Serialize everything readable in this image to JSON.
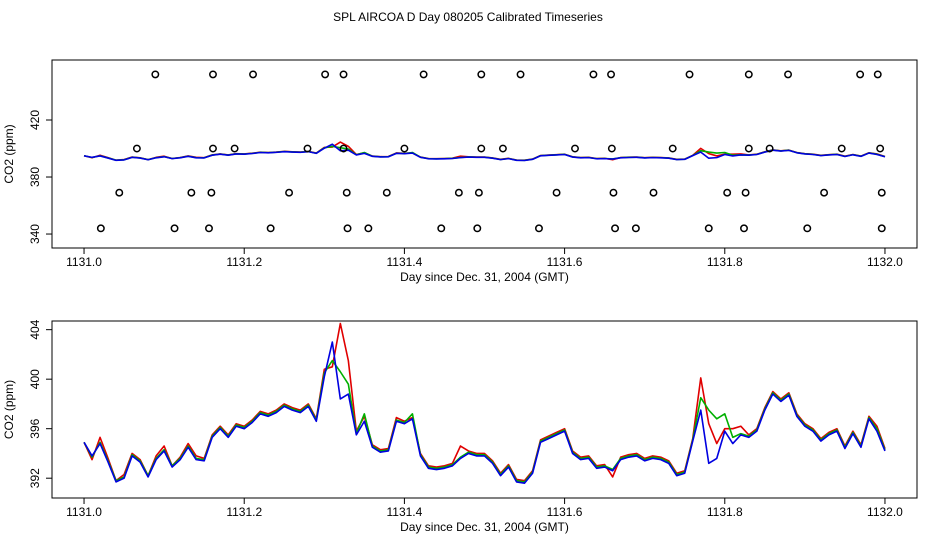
{
  "chart_data": [
    {
      "type": "line",
      "title": "SPL AIRCOA D  Day 080205  Calibrated Timeseries",
      "xlabel": "Day since Dec. 31, 2004 (GMT)",
      "ylabel": "CO2 (ppm)",
      "xlim": [
        1130.96,
        1132.04
      ],
      "xticks": [
        {
          "value": 1131.0,
          "label": "1131.0"
        },
        {
          "value": 1131.2,
          "label": "1131.2"
        },
        {
          "value": 1131.4,
          "label": "1131.4"
        },
        {
          "value": 1131.6,
          "label": "1131.6"
        },
        {
          "value": 1131.8,
          "label": "1131.8"
        },
        {
          "value": 1132.0,
          "label": "1132.0"
        }
      ],
      "ylim": [
        330.2,
        462.1
      ],
      "yticks": [
        340,
        380,
        420
      ],
      "x": [
        1131.0,
        1131.01,
        1131.02,
        1131.03,
        1131.04,
        1131.05,
        1131.06,
        1131.07,
        1131.08,
        1131.09,
        1131.1,
        1131.11,
        1131.12,
        1131.13,
        1131.14,
        1131.15,
        1131.16,
        1131.17,
        1131.18,
        1131.19,
        1131.2,
        1131.21,
        1131.22,
        1131.23,
        1131.24,
        1131.25,
        1131.26,
        1131.27,
        1131.28,
        1131.29,
        1131.3,
        1131.31,
        1131.32,
        1131.33,
        1131.34,
        1131.35,
        1131.36,
        1131.37,
        1131.38,
        1131.39,
        1131.4,
        1131.41,
        1131.42,
        1131.43,
        1131.44,
        1131.45,
        1131.46,
        1131.47,
        1131.48,
        1131.49,
        1131.5,
        1131.51,
        1131.52,
        1131.53,
        1131.54,
        1131.55,
        1131.56,
        1131.57,
        1131.58,
        1131.59,
        1131.6,
        1131.61,
        1131.62,
        1131.63,
        1131.64,
        1131.65,
        1131.66,
        1131.67,
        1131.68,
        1131.69,
        1131.7,
        1131.71,
        1131.72,
        1131.73,
        1131.74,
        1131.75,
        1131.76,
        1131.77,
        1131.78,
        1131.79,
        1131.8,
        1131.81,
        1131.82,
        1131.83,
        1131.84,
        1131.85,
        1131.86,
        1131.87,
        1131.88,
        1131.89,
        1131.9,
        1131.91,
        1131.92,
        1131.93,
        1131.94,
        1131.95,
        1131.96,
        1131.97,
        1131.98,
        1131.99,
        1132.0
      ],
      "series": [
        {
          "color": "#e00000",
          "values": [
            394.9,
            393.5,
            395.3,
            393.6,
            391.8,
            392.3,
            394.0,
            393.5,
            392.2,
            393.8,
            394.6,
            393.0,
            393.7,
            394.8,
            393.8,
            393.6,
            395.5,
            396.2,
            395.5,
            396.4,
            396.2,
            396.7,
            397.4,
            397.2,
            397.5,
            398.0,
            397.7,
            397.5,
            398.0,
            396.8,
            400.8,
            401.0,
            404.5,
            401.5,
            395.8,
            397.0,
            394.7,
            394.3,
            394.4,
            396.9,
            396.6,
            396.9,
            394.0,
            393.0,
            392.9,
            393.0,
            393.2,
            394.6,
            394.2,
            394.0,
            394.0,
            393.4,
            392.4,
            393.1,
            391.9,
            391.8,
            392.6,
            395.1,
            395.4,
            395.7,
            396.0,
            394.2,
            393.7,
            393.8,
            393.0,
            393.1,
            392.1,
            393.7,
            393.9,
            394.0,
            393.6,
            393.8,
            393.7,
            393.4,
            392.4,
            392.6,
            395.2,
            400.1,
            396.4,
            394.8,
            396.0,
            396.0,
            396.2,
            395.5,
            396.0,
            397.7,
            399.0,
            398.4,
            398.9,
            397.2,
            396.4,
            396.0,
            395.2,
            395.7,
            396.0,
            394.6,
            395.8,
            394.7,
            397.0,
            396.2,
            394.4
          ]
        },
        {
          "color": "#00b000",
          "values": [
            394.9,
            393.7,
            394.9,
            393.4,
            391.8,
            392.1,
            393.9,
            393.4,
            392.2,
            393.6,
            394.3,
            393.0,
            393.6,
            394.6,
            393.6,
            393.5,
            395.4,
            396.1,
            395.4,
            396.3,
            396.1,
            396.6,
            397.3,
            397.1,
            397.4,
            397.9,
            397.6,
            397.4,
            397.9,
            396.7,
            400.5,
            401.5,
            400.6,
            399.6,
            395.6,
            397.2,
            394.6,
            394.2,
            394.3,
            396.7,
            396.5,
            397.2,
            393.9,
            392.9,
            392.8,
            392.9,
            393.1,
            393.7,
            394.1,
            393.9,
            393.9,
            393.3,
            392.3,
            393.0,
            391.8,
            391.7,
            392.5,
            395.0,
            395.3,
            395.6,
            395.9,
            394.1,
            393.6,
            393.7,
            392.9,
            393.0,
            392.7,
            393.6,
            393.8,
            393.9,
            393.5,
            393.7,
            393.6,
            393.3,
            392.3,
            392.5,
            395.1,
            398.5,
            397.5,
            396.8,
            397.2,
            395.3,
            395.6,
            395.4,
            395.9,
            397.6,
            398.9,
            398.3,
            398.8,
            397.1,
            396.3,
            395.9,
            395.1,
            395.6,
            395.9,
            394.5,
            395.7,
            394.6,
            396.9,
            396.0,
            394.3
          ]
        },
        {
          "color": "#0000e0",
          "values": [
            394.9,
            393.8,
            394.8,
            393.3,
            391.7,
            392.0,
            393.8,
            393.3,
            392.1,
            393.5,
            394.2,
            392.9,
            393.5,
            394.5,
            393.5,
            393.4,
            395.3,
            396.0,
            395.3,
            396.2,
            396.0,
            396.5,
            397.2,
            397.0,
            397.3,
            397.8,
            397.5,
            397.3,
            397.8,
            396.6,
            400.2,
            403.0,
            398.4,
            398.8,
            395.5,
            396.6,
            394.5,
            394.1,
            394.2,
            396.6,
            396.4,
            396.8,
            393.8,
            392.8,
            392.7,
            392.8,
            393.0,
            393.6,
            394.0,
            393.8,
            393.8,
            393.2,
            392.2,
            392.9,
            391.7,
            391.6,
            392.4,
            394.9,
            395.2,
            395.5,
            395.8,
            394.0,
            393.5,
            393.6,
            392.8,
            392.9,
            392.6,
            393.5,
            393.7,
            393.8,
            393.4,
            393.6,
            393.5,
            393.2,
            392.2,
            392.4,
            395.0,
            397.5,
            393.2,
            393.6,
            395.8,
            394.8,
            395.5,
            395.3,
            395.8,
            397.5,
            398.8,
            398.2,
            398.7,
            397.0,
            396.2,
            395.8,
            395.0,
            395.5,
            395.8,
            394.4,
            395.6,
            394.5,
            396.8,
            395.8,
            394.2
          ]
        }
      ],
      "points": {
        "color": "#000000",
        "x": [
          1131.089,
          1131.161,
          1131.211,
          1131.301,
          1131.324,
          1131.424,
          1131.496,
          1131.545,
          1131.636,
          1131.658,
          1131.756,
          1131.83,
          1131.879,
          1131.969,
          1131.991,
          1131.066,
          1131.161,
          1131.188,
          1131.279,
          1131.324,
          1131.4,
          1131.496,
          1131.523,
          1131.613,
          1131.659,
          1131.735,
          1131.83,
          1131.856,
          1131.946,
          1131.994,
          1131.044,
          1131.134,
          1131.159,
          1131.256,
          1131.328,
          1131.378,
          1131.468,
          1131.493,
          1131.59,
          1131.661,
          1131.711,
          1131.803,
          1131.826,
          1131.924,
          1131.996,
          1131.021,
          1131.113,
          1131.156,
          1131.233,
          1131.329,
          1131.355,
          1131.446,
          1131.491,
          1131.568,
          1131.663,
          1131.689,
          1131.78,
          1131.824,
          1131.903,
          1131.996
        ],
        "y": [
          452,
          452,
          452,
          452,
          452,
          452,
          452,
          452,
          452,
          452,
          452,
          452,
          452,
          452,
          452,
          400,
          400,
          400,
          400,
          400,
          400,
          400,
          400,
          400,
          400,
          400,
          400,
          400,
          400,
          400,
          369,
          369,
          369,
          369,
          369,
          369,
          369,
          369,
          369,
          369,
          369,
          369,
          369,
          369,
          369,
          344,
          344,
          344,
          344,
          344,
          344,
          344,
          344,
          344,
          344,
          344,
          344,
          344,
          344,
          344
        ]
      }
    },
    {
      "type": "line",
      "xlabel": "Day since Dec. 31, 2004 (GMT)",
      "ylabel": "CO2 (ppm)",
      "xlim": [
        1130.96,
        1132.04
      ],
      "xticks": [
        {
          "value": 1131.0,
          "label": "1131.0"
        },
        {
          "value": 1131.2,
          "label": "1131.2"
        },
        {
          "value": 1131.4,
          "label": "1131.4"
        },
        {
          "value": 1131.6,
          "label": "1131.6"
        },
        {
          "value": 1131.8,
          "label": "1131.8"
        },
        {
          "value": 1132.0,
          "label": "1132.0"
        }
      ],
      "ylim": [
        390.4,
        404.7
      ],
      "yticks": [
        392,
        396,
        400,
        404
      ],
      "x": [
        1131.0,
        1131.01,
        1131.02,
        1131.03,
        1131.04,
        1131.05,
        1131.06,
        1131.07,
        1131.08,
        1131.09,
        1131.1,
        1131.11,
        1131.12,
        1131.13,
        1131.14,
        1131.15,
        1131.16,
        1131.17,
        1131.18,
        1131.19,
        1131.2,
        1131.21,
        1131.22,
        1131.23,
        1131.24,
        1131.25,
        1131.26,
        1131.27,
        1131.28,
        1131.29,
        1131.3,
        1131.31,
        1131.32,
        1131.33,
        1131.34,
        1131.35,
        1131.36,
        1131.37,
        1131.38,
        1131.39,
        1131.4,
        1131.41,
        1131.42,
        1131.43,
        1131.44,
        1131.45,
        1131.46,
        1131.47,
        1131.48,
        1131.49,
        1131.5,
        1131.51,
        1131.52,
        1131.53,
        1131.54,
        1131.55,
        1131.56,
        1131.57,
        1131.58,
        1131.59,
        1131.6,
        1131.61,
        1131.62,
        1131.63,
        1131.64,
        1131.65,
        1131.66,
        1131.67,
        1131.68,
        1131.69,
        1131.7,
        1131.71,
        1131.72,
        1131.73,
        1131.74,
        1131.75,
        1131.76,
        1131.77,
        1131.78,
        1131.79,
        1131.8,
        1131.81,
        1131.82,
        1131.83,
        1131.84,
        1131.85,
        1131.86,
        1131.87,
        1131.88,
        1131.89,
        1131.9,
        1131.91,
        1131.92,
        1131.93,
        1131.94,
        1131.95,
        1131.96,
        1131.97,
        1131.98,
        1131.99,
        1132.0
      ],
      "series": [
        {
          "color": "#e00000",
          "values": [
            394.9,
            393.5,
            395.3,
            393.6,
            391.8,
            392.3,
            394.0,
            393.5,
            392.2,
            393.8,
            394.6,
            393.0,
            393.7,
            394.8,
            393.8,
            393.6,
            395.5,
            396.2,
            395.5,
            396.4,
            396.2,
            396.7,
            397.4,
            397.2,
            397.5,
            398.0,
            397.7,
            397.5,
            398.0,
            396.8,
            400.8,
            401.0,
            404.5,
            401.5,
            395.8,
            397.0,
            394.7,
            394.3,
            394.4,
            396.9,
            396.6,
            396.9,
            394.0,
            393.0,
            392.9,
            393.0,
            393.2,
            394.6,
            394.2,
            394.0,
            394.0,
            393.4,
            392.4,
            393.1,
            391.9,
            391.8,
            392.6,
            395.1,
            395.4,
            395.7,
            396.0,
            394.2,
            393.7,
            393.8,
            393.0,
            393.1,
            392.1,
            393.7,
            393.9,
            394.0,
            393.6,
            393.8,
            393.7,
            393.4,
            392.4,
            392.6,
            395.2,
            400.1,
            396.4,
            394.8,
            396.0,
            396.0,
            396.2,
            395.5,
            396.0,
            397.7,
            399.0,
            398.4,
            398.9,
            397.2,
            396.4,
            396.0,
            395.2,
            395.7,
            396.0,
            394.6,
            395.8,
            394.7,
            397.0,
            396.2,
            394.4
          ]
        },
        {
          "color": "#00b000",
          "values": [
            394.9,
            393.7,
            394.9,
            393.4,
            391.8,
            392.1,
            393.9,
            393.4,
            392.2,
            393.6,
            394.3,
            393.0,
            393.6,
            394.6,
            393.6,
            393.5,
            395.4,
            396.1,
            395.4,
            396.3,
            396.1,
            396.6,
            397.3,
            397.1,
            397.4,
            397.9,
            397.6,
            397.4,
            397.9,
            396.7,
            400.5,
            401.5,
            400.6,
            399.6,
            395.6,
            397.2,
            394.6,
            394.2,
            394.3,
            396.7,
            396.5,
            397.2,
            393.9,
            392.9,
            392.8,
            392.9,
            393.1,
            393.7,
            394.1,
            393.9,
            393.9,
            393.3,
            392.3,
            393.0,
            391.8,
            391.7,
            392.5,
            395.0,
            395.3,
            395.6,
            395.9,
            394.1,
            393.6,
            393.7,
            392.9,
            393.0,
            392.7,
            393.6,
            393.8,
            393.9,
            393.5,
            393.7,
            393.6,
            393.3,
            392.3,
            392.5,
            395.1,
            398.5,
            397.5,
            396.8,
            397.2,
            395.3,
            395.6,
            395.4,
            395.9,
            397.6,
            398.9,
            398.3,
            398.8,
            397.1,
            396.3,
            395.9,
            395.1,
            395.6,
            395.9,
            394.5,
            395.7,
            394.6,
            396.9,
            396.0,
            394.3
          ]
        },
        {
          "color": "#0000e0",
          "values": [
            394.9,
            393.8,
            394.8,
            393.3,
            391.7,
            392.0,
            393.8,
            393.3,
            392.1,
            393.5,
            394.2,
            392.9,
            393.5,
            394.5,
            393.5,
            393.4,
            395.3,
            396.0,
            395.3,
            396.2,
            396.0,
            396.5,
            397.2,
            397.0,
            397.3,
            397.8,
            397.5,
            397.3,
            397.8,
            396.6,
            400.2,
            403.0,
            398.4,
            398.8,
            395.5,
            396.6,
            394.5,
            394.1,
            394.2,
            396.6,
            396.4,
            396.8,
            393.8,
            392.8,
            392.7,
            392.8,
            393.0,
            393.6,
            394.0,
            393.8,
            393.8,
            393.2,
            392.2,
            392.9,
            391.7,
            391.6,
            392.4,
            394.9,
            395.2,
            395.5,
            395.8,
            394.0,
            393.5,
            393.6,
            392.8,
            392.9,
            392.6,
            393.5,
            393.7,
            393.8,
            393.4,
            393.6,
            393.5,
            393.2,
            392.2,
            392.4,
            395.0,
            397.5,
            393.2,
            393.6,
            395.8,
            394.8,
            395.5,
            395.3,
            395.8,
            397.5,
            398.8,
            398.2,
            398.7,
            397.0,
            396.2,
            395.8,
            395.0,
            395.5,
            395.8,
            394.4,
            395.6,
            394.5,
            396.8,
            395.8,
            394.2
          ]
        }
      ]
    }
  ]
}
